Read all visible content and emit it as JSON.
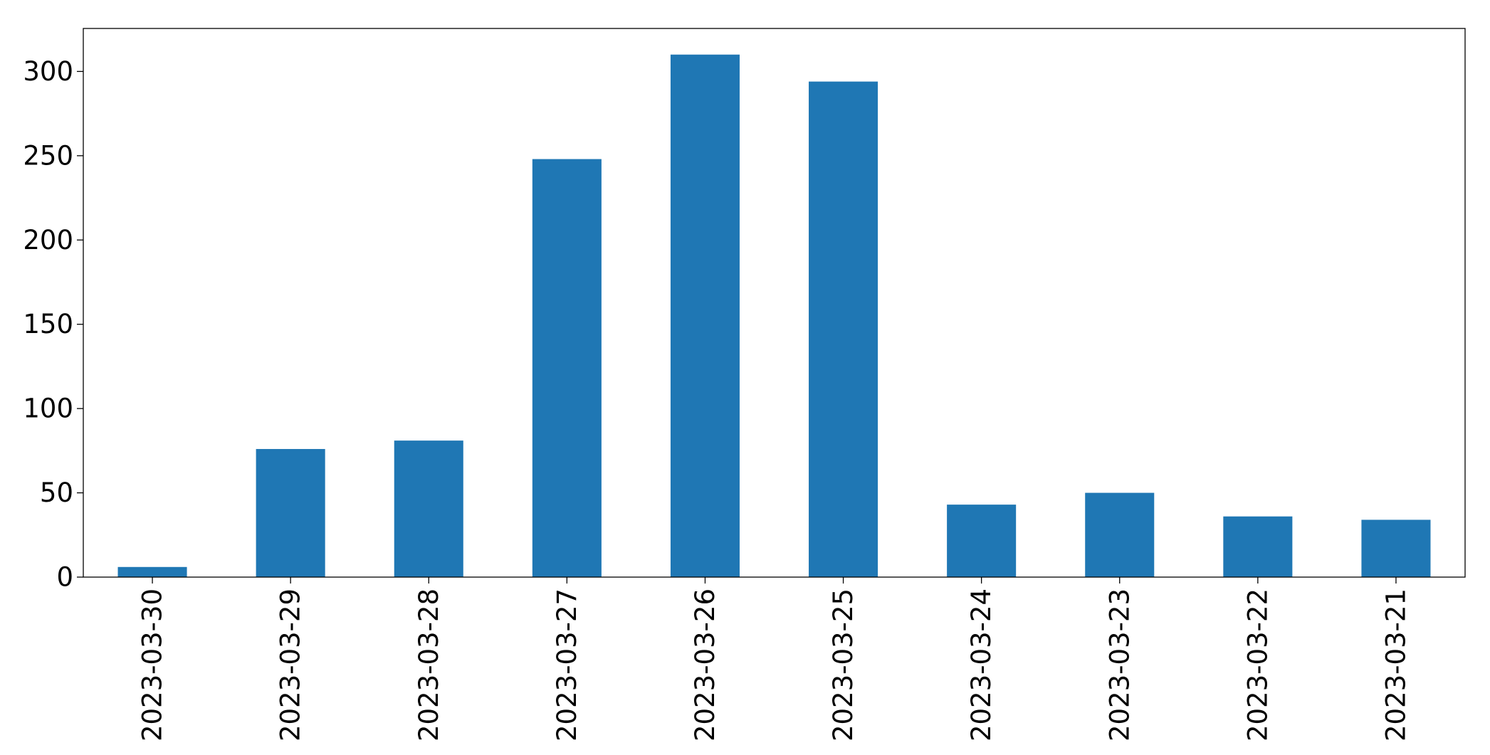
{
  "chart_data": {
    "type": "bar",
    "categories": [
      "2023-03-30",
      "2023-03-29",
      "2023-03-28",
      "2023-03-27",
      "2023-03-26",
      "2023-03-25",
      "2023-03-24",
      "2023-03-23",
      "2023-03-22",
      "2023-03-21"
    ],
    "values": [
      6,
      76,
      81,
      248,
      310,
      294,
      43,
      50,
      36,
      34
    ],
    "title": "",
    "xlabel": "",
    "ylabel": "",
    "ylim": [
      0,
      325.5
    ],
    "yticks": [
      0,
      50,
      100,
      150,
      200,
      250,
      300
    ],
    "grid": false,
    "legend": "none",
    "bar_color": "#1f77b4"
  }
}
